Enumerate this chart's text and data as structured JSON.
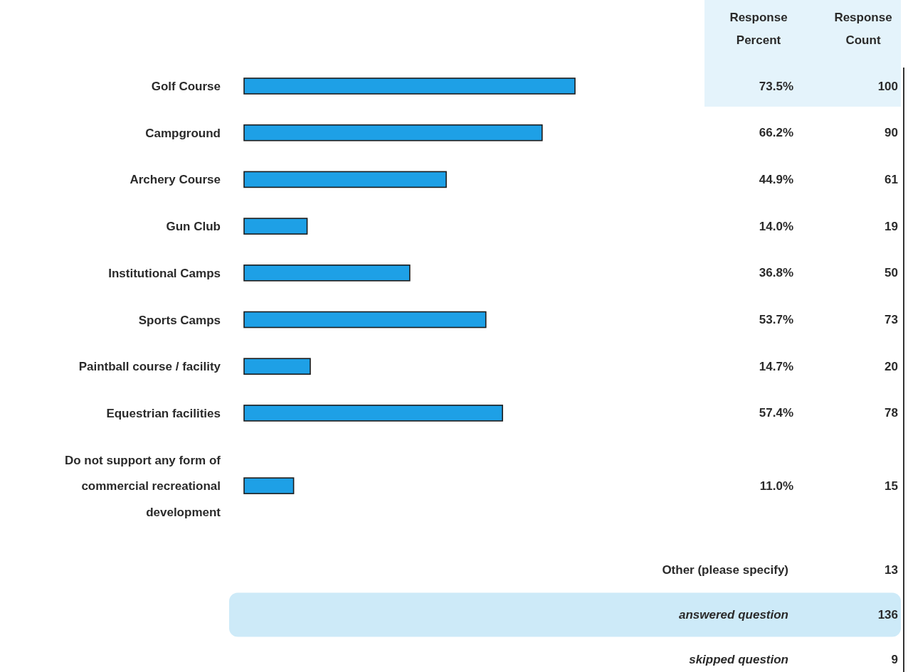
{
  "chart_data": {
    "type": "bar",
    "orientation": "horizontal",
    "categories": [
      "Golf Course",
      "Campground",
      "Archery Course",
      "Gun Club",
      "Institutional Camps",
      "Sports Camps",
      "Paintball course / facility",
      "Equestrian facilities",
      "Do not support any form of commercial recreational development"
    ],
    "values": [
      73.5,
      66.2,
      44.9,
      14.0,
      36.8,
      53.7,
      14.7,
      57.4,
      11.0
    ],
    "color": "#1ea0e6",
    "value_labels": [
      "73.5%",
      "66.2%",
      "44.9%",
      "14.0%",
      "36.8%",
      "53.7%",
      "14.7%",
      "57.4%",
      "11.0%"
    ],
    "annotations": [
      "Response Percent",
      "Response Count",
      "100",
      "90",
      "61",
      "19",
      "50",
      "73",
      "20",
      "78",
      "15",
      "Other (please specify)",
      "13",
      "answered question",
      "136",
      "skipped question",
      "9"
    ]
  }
}
